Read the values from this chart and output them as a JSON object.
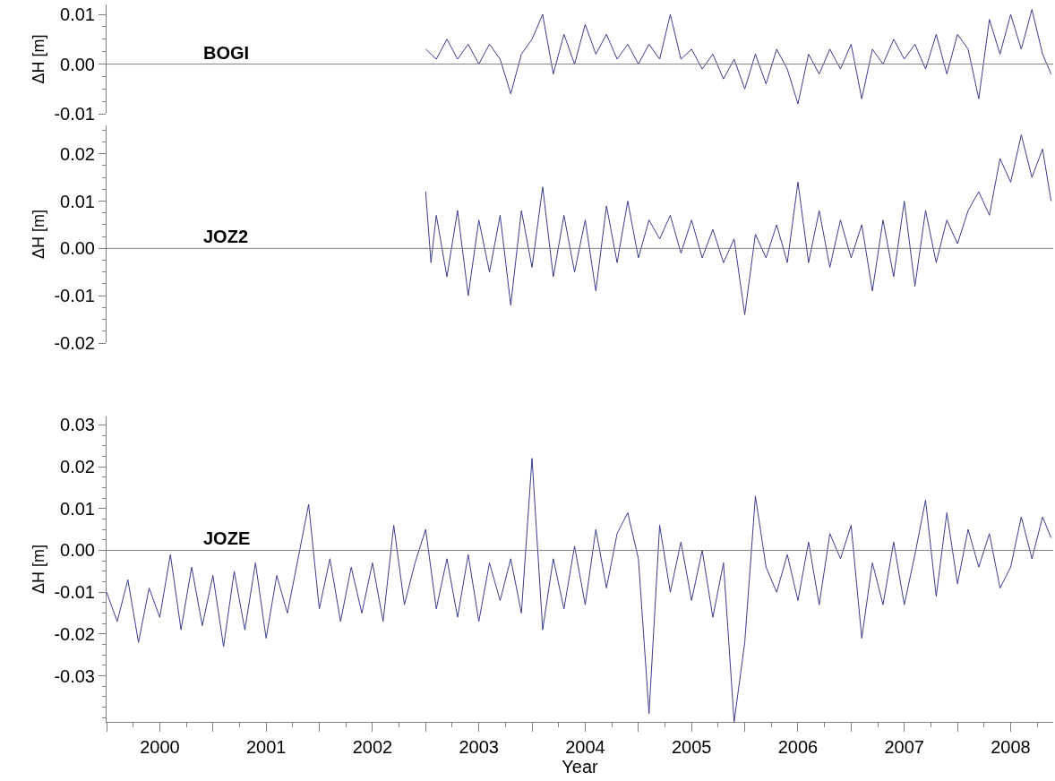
{
  "chart_data": [
    {
      "type": "line",
      "ylabel": "ΔH [m]",
      "tick_labels": "y",
      "xlim": [
        2000,
        2008.9
      ],
      "ylim": [
        -0.01,
        0.012
      ],
      "yticks": [
        {
          "value": -0.01,
          "label": "-0.01"
        },
        {
          "value": 0,
          "label": "0.00"
        },
        {
          "value": 0.01,
          "label": "0.01"
        }
      ],
      "ref_lines": [
        {
          "axis": "y",
          "value": 0,
          "color": "#808080"
        }
      ],
      "series": [
        {
          "name": "BOGI",
          "color": "#3c3c8c",
          "x": [
            2003.0,
            2003.1,
            2003.2,
            2003.3,
            2003.4,
            2003.5,
            2003.6,
            2003.7,
            2003.8,
            2003.9,
            2004.0,
            2004.1,
            2004.2,
            2004.3,
            2004.4,
            2004.5,
            2004.6,
            2004.7,
            2004.8,
            2004.9,
            2005.0,
            2005.1,
            2005.2,
            2005.3,
            2005.4,
            2005.5,
            2005.6,
            2005.7,
            2005.8,
            2005.9,
            2006.0,
            2006.1,
            2006.2,
            2006.3,
            2006.4,
            2006.5,
            2006.6,
            2006.7,
            2006.8,
            2006.9,
            2007.0,
            2007.1,
            2007.2,
            2007.3,
            2007.4,
            2007.5,
            2007.6,
            2007.7,
            2007.8,
            2007.9,
            2008.0,
            2008.1,
            2008.2,
            2008.3,
            2008.4,
            2008.5,
            2008.6,
            2008.7,
            2008.8,
            2008.88
          ],
          "values": [
            0.003,
            0.001,
            0.005,
            0.001,
            0.004,
            0.0,
            0.004,
            0.001,
            -0.006,
            0.002,
            0.005,
            0.01,
            -0.002,
            0.006,
            0.0,
            0.008,
            0.002,
            0.006,
            0.001,
            0.004,
            0.0,
            0.004,
            0.001,
            0.01,
            0.001,
            0.003,
            -0.001,
            0.002,
            -0.003,
            0.001,
            -0.005,
            0.002,
            -0.004,
            0.003,
            -0.001,
            -0.008,
            0.002,
            -0.002,
            0.003,
            -0.001,
            0.004,
            -0.007,
            0.003,
            0.0,
            0.005,
            0.001,
            0.004,
            -0.001,
            0.006,
            -0.002,
            0.006,
            0.003,
            -0.007,
            0.009,
            0.002,
            0.01,
            0.003,
            0.011,
            0.002,
            -0.002
          ]
        }
      ]
    },
    {
      "type": "line",
      "ylabel": "ΔH [m]",
      "tick_labels": "y",
      "xlim": [
        2000,
        2008.9
      ],
      "ylim": [
        -0.02,
        0.026
      ],
      "yticks": [
        {
          "value": -0.02,
          "label": "-0.02"
        },
        {
          "value": -0.01,
          "label": "-0.01"
        },
        {
          "value": 0,
          "label": "0.00"
        },
        {
          "value": 0.01,
          "label": "0.01"
        },
        {
          "value": 0.02,
          "label": "0.02"
        }
      ],
      "ref_lines": [
        {
          "axis": "y",
          "value": 0,
          "color": "#808080"
        }
      ],
      "series": [
        {
          "name": "JOZ2",
          "color": "#3c3c8c",
          "x": [
            2003.0,
            2003.05,
            2003.1,
            2003.2,
            2003.3,
            2003.4,
            2003.5,
            2003.6,
            2003.7,
            2003.8,
            2003.9,
            2004.0,
            2004.1,
            2004.2,
            2004.3,
            2004.4,
            2004.5,
            2004.6,
            2004.7,
            2004.8,
            2004.9,
            2005.0,
            2005.1,
            2005.2,
            2005.3,
            2005.4,
            2005.5,
            2005.6,
            2005.7,
            2005.8,
            2005.9,
            2006.0,
            2006.1,
            2006.2,
            2006.3,
            2006.4,
            2006.5,
            2006.6,
            2006.7,
            2006.8,
            2006.9,
            2007.0,
            2007.1,
            2007.2,
            2007.3,
            2007.4,
            2007.5,
            2007.6,
            2007.7,
            2007.8,
            2007.9,
            2008.0,
            2008.1,
            2008.2,
            2008.3,
            2008.4,
            2008.5,
            2008.6,
            2008.7,
            2008.8,
            2008.88
          ],
          "values": [
            0.012,
            -0.003,
            0.007,
            -0.006,
            0.008,
            -0.01,
            0.006,
            -0.005,
            0.007,
            -0.012,
            0.008,
            -0.004,
            0.013,
            -0.006,
            0.007,
            -0.005,
            0.006,
            -0.009,
            0.009,
            -0.003,
            0.01,
            -0.002,
            0.006,
            0.002,
            0.007,
            -0.001,
            0.006,
            -0.002,
            0.004,
            -0.003,
            0.002,
            -0.014,
            0.003,
            -0.002,
            0.005,
            -0.003,
            0.014,
            -0.003,
            0.008,
            -0.004,
            0.006,
            -0.002,
            0.005,
            -0.009,
            0.006,
            -0.006,
            0.01,
            -0.008,
            0.008,
            -0.003,
            0.006,
            0.001,
            0.008,
            0.012,
            0.007,
            0.019,
            0.014,
            0.024,
            0.015,
            0.021,
            0.01
          ]
        }
      ]
    },
    {
      "type": "line",
      "xlabel": "Year",
      "ylabel": "ΔH [m]",
      "xlim": [
        2000,
        2008.9
      ],
      "ylim": [
        -0.041,
        0.032
      ],
      "xticks": [
        {
          "value": 2000,
          "label": null
        },
        {
          "value": 2000.5,
          "label": "2000"
        },
        {
          "value": 2001,
          "label": null
        },
        {
          "value": 2001.5,
          "label": "2001"
        },
        {
          "value": 2002,
          "label": null
        },
        {
          "value": 2002.5,
          "label": "2002"
        },
        {
          "value": 2003,
          "label": null
        },
        {
          "value": 2003.5,
          "label": "2003"
        },
        {
          "value": 2004,
          "label": null
        },
        {
          "value": 2004.5,
          "label": "2004"
        },
        {
          "value": 2005,
          "label": null
        },
        {
          "value": 2005.5,
          "label": "2005"
        },
        {
          "value": 2006,
          "label": null
        },
        {
          "value": 2006.5,
          "label": "2006"
        },
        {
          "value": 2007,
          "label": null
        },
        {
          "value": 2007.5,
          "label": "2007"
        },
        {
          "value": 2008,
          "label": null
        },
        {
          "value": 2008.5,
          "label": "2008"
        }
      ],
      "yticks": [
        {
          "value": -0.03,
          "label": "-0.03"
        },
        {
          "value": -0.02,
          "label": "-0.02"
        },
        {
          "value": -0.01,
          "label": "-0.01"
        },
        {
          "value": 0,
          "label": "0.00"
        },
        {
          "value": 0.01,
          "label": "0.01"
        },
        {
          "value": 0.02,
          "label": "0.02"
        },
        {
          "value": 0.03,
          "label": "0.03"
        }
      ],
      "ref_lines": [
        {
          "axis": "y",
          "value": 0,
          "color": "#808080"
        }
      ],
      "series": [
        {
          "name": "JOZE",
          "color": "#3c3c8c",
          "x": [
            2000.0,
            2000.1,
            2000.2,
            2000.3,
            2000.4,
            2000.5,
            2000.6,
            2000.7,
            2000.8,
            2000.9,
            2001.0,
            2001.1,
            2001.2,
            2001.3,
            2001.4,
            2001.5,
            2001.6,
            2001.7,
            2001.8,
            2001.9,
            2002.0,
            2002.1,
            2002.2,
            2002.3,
            2002.4,
            2002.5,
            2002.6,
            2002.7,
            2002.8,
            2002.9,
            2003.0,
            2003.1,
            2003.2,
            2003.3,
            2003.4,
            2003.5,
            2003.6,
            2003.7,
            2003.8,
            2003.9,
            2004.0,
            2004.1,
            2004.2,
            2004.3,
            2004.4,
            2004.5,
            2004.6,
            2004.7,
            2004.8,
            2004.9,
            2005.0,
            2005.1,
            2005.2,
            2005.3,
            2005.4,
            2005.5,
            2005.6,
            2005.7,
            2005.8,
            2005.9,
            2006.0,
            2006.1,
            2006.2,
            2006.3,
            2006.4,
            2006.5,
            2006.6,
            2006.7,
            2006.8,
            2006.9,
            2007.0,
            2007.1,
            2007.2,
            2007.3,
            2007.4,
            2007.5,
            2007.6,
            2007.7,
            2007.8,
            2007.9,
            2008.0,
            2008.1,
            2008.2,
            2008.3,
            2008.4,
            2008.5,
            2008.6,
            2008.7,
            2008.8,
            2008.88
          ],
          "values": [
            -0.01,
            -0.017,
            -0.007,
            -0.022,
            -0.009,
            -0.016,
            -0.001,
            -0.019,
            -0.004,
            -0.018,
            -0.006,
            -0.023,
            -0.005,
            -0.019,
            -0.003,
            -0.021,
            -0.006,
            -0.015,
            -0.002,
            0.011,
            -0.014,
            -0.002,
            -0.017,
            -0.004,
            -0.015,
            -0.003,
            -0.017,
            0.006,
            -0.013,
            -0.003,
            0.005,
            -0.014,
            -0.002,
            -0.016,
            -0.001,
            -0.017,
            -0.003,
            -0.012,
            -0.002,
            -0.015,
            0.022,
            -0.019,
            -0.002,
            -0.014,
            0.001,
            -0.013,
            0.005,
            -0.009,
            0.004,
            0.009,
            -0.002,
            -0.039,
            0.006,
            -0.01,
            0.002,
            -0.012,
            0.0,
            -0.016,
            -0.003,
            -0.041,
            -0.022,
            0.013,
            -0.004,
            -0.01,
            -0.001,
            -0.012,
            0.002,
            -0.013,
            0.004,
            -0.002,
            0.006,
            -0.021,
            -0.003,
            -0.013,
            0.002,
            -0.013,
            -0.001,
            0.012,
            -0.011,
            0.009,
            -0.008,
            0.005,
            -0.004,
            0.004,
            -0.009,
            -0.004,
            0.008,
            -0.002,
            0.008,
            0.003
          ]
        }
      ]
    }
  ]
}
